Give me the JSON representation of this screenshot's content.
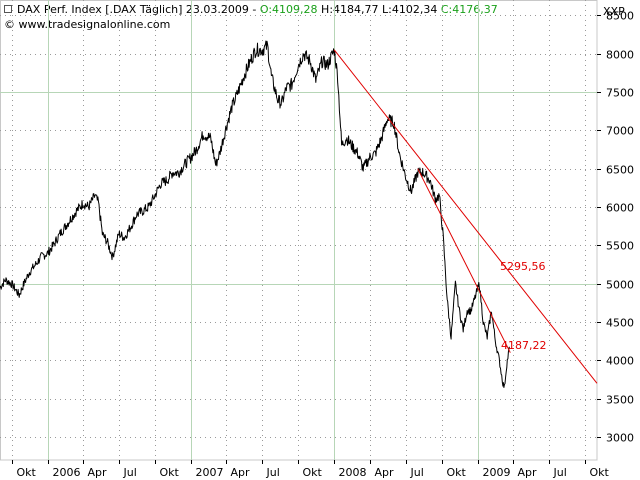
{
  "header": {
    "title": "DAX Perf. Index [.DAX  Täglich]",
    "date": "23.03.2009",
    "open": "O:4109,28",
    "high": "H:4184,77",
    "low": "L:4102,34",
    "close": "C:4176,37",
    "source": "© www.tradesignalonline.com",
    "unit": "XXP"
  },
  "chart_data": {
    "type": "line",
    "title": "DAX Perf. Index [.DAX  Täglich]",
    "xlabel": "",
    "ylabel": "",
    "ylim": [
      2700,
      8700
    ],
    "yticks": [
      3000,
      3500,
      4000,
      4500,
      5000,
      5500,
      6000,
      6500,
      7000,
      7500,
      8000,
      8500
    ],
    "ytick_labels": [
      "3000",
      "3500",
      "4000",
      "4500",
      "5000",
      "5500",
      "6000",
      "6500",
      "7000",
      "7500",
      "8000",
      "8500"
    ],
    "x_range": [
      "2005-09-01",
      "2009-11-01"
    ],
    "xticks": [
      {
        "date": "2005-10-01",
        "label": "Okt"
      },
      {
        "date": "2006-01-01",
        "label": "2006"
      },
      {
        "date": "2006-04-01",
        "label": "Apr"
      },
      {
        "date": "2006-07-01",
        "label": "Jul"
      },
      {
        "date": "2006-10-01",
        "label": "Okt"
      },
      {
        "date": "2007-01-01",
        "label": "2007"
      },
      {
        "date": "2007-04-01",
        "label": "Apr"
      },
      {
        "date": "2007-07-01",
        "label": "Jul"
      },
      {
        "date": "2007-10-01",
        "label": "Okt"
      },
      {
        "date": "2008-01-01",
        "label": "2008"
      },
      {
        "date": "2008-04-01",
        "label": "Apr"
      },
      {
        "date": "2008-07-01",
        "label": "Jul"
      },
      {
        "date": "2008-10-01",
        "label": "Okt"
      },
      {
        "date": "2009-01-01",
        "label": "2009"
      },
      {
        "date": "2009-04-01",
        "label": "Apr"
      },
      {
        "date": "2009-07-01",
        "label": "Jul"
      },
      {
        "date": "2009-10-01",
        "label": "Okt"
      }
    ],
    "major_grid_dates": [
      "2006-01-01",
      "2007-01-01",
      "2008-01-01",
      "2009-01-01"
    ],
    "major_grid_values": [
      5000,
      7500
    ],
    "grid": true,
    "series": [
      {
        "color": "#000000",
        "points": [
          [
            "2005-09-01",
            4950
          ],
          [
            "2005-09-15",
            5050
          ],
          [
            "2005-09-30",
            5000
          ],
          [
            "2005-10-10",
            4930
          ],
          [
            "2005-10-20",
            4850
          ],
          [
            "2005-11-01",
            5000
          ],
          [
            "2005-11-15",
            5150
          ],
          [
            "2005-12-01",
            5250
          ],
          [
            "2005-12-15",
            5350
          ],
          [
            "2006-01-01",
            5400
          ],
          [
            "2006-01-15",
            5500
          ],
          [
            "2006-02-01",
            5650
          ],
          [
            "2006-02-15",
            5750
          ],
          [
            "2006-03-01",
            5850
          ],
          [
            "2006-03-15",
            5950
          ],
          [
            "2006-04-01",
            6050
          ],
          [
            "2006-04-15",
            6000
          ],
          [
            "2006-05-01",
            6150
          ],
          [
            "2006-05-10",
            6050
          ],
          [
            "2006-05-20",
            5650
          ],
          [
            "2006-06-01",
            5550
          ],
          [
            "2006-06-15",
            5350
          ],
          [
            "2006-07-01",
            5650
          ],
          [
            "2006-07-15",
            5600
          ],
          [
            "2006-08-01",
            5750
          ],
          [
            "2006-08-15",
            5900
          ],
          [
            "2006-09-01",
            5950
          ],
          [
            "2006-09-15",
            6000
          ],
          [
            "2006-10-01",
            6150
          ],
          [
            "2006-10-15",
            6300
          ],
          [
            "2006-11-01",
            6350
          ],
          [
            "2006-11-15",
            6450
          ],
          [
            "2006-12-01",
            6450
          ],
          [
            "2006-12-15",
            6550
          ],
          [
            "2007-01-01",
            6650
          ],
          [
            "2007-01-15",
            6750
          ],
          [
            "2007-02-01",
            6950
          ],
          [
            "2007-02-20",
            6900
          ],
          [
            "2007-03-05",
            6550
          ],
          [
            "2007-03-15",
            6700
          ],
          [
            "2007-04-01",
            7050
          ],
          [
            "2007-04-15",
            7300
          ],
          [
            "2007-05-01",
            7500
          ],
          [
            "2007-05-15",
            7700
          ],
          [
            "2007-06-01",
            7900
          ],
          [
            "2007-06-15",
            8050
          ],
          [
            "2007-07-01",
            8050
          ],
          [
            "2007-07-15",
            8100
          ],
          [
            "2007-07-25",
            7700
          ],
          [
            "2007-08-10",
            7400
          ],
          [
            "2007-08-20",
            7350
          ],
          [
            "2007-09-01",
            7550
          ],
          [
            "2007-09-15",
            7600
          ],
          [
            "2007-10-01",
            7850
          ],
          [
            "2007-10-15",
            8000
          ],
          [
            "2007-11-01",
            7900
          ],
          [
            "2007-11-15",
            7650
          ],
          [
            "2007-12-01",
            7900
          ],
          [
            "2007-12-15",
            7850
          ],
          [
            "2008-01-01",
            8050
          ],
          [
            "2008-01-10",
            7700
          ],
          [
            "2008-01-20",
            6800
          ],
          [
            "2008-02-01",
            6900
          ],
          [
            "2008-02-15",
            6800
          ],
          [
            "2008-03-01",
            6700
          ],
          [
            "2008-03-15",
            6500
          ],
          [
            "2008-04-01",
            6650
          ],
          [
            "2008-04-15",
            6700
          ],
          [
            "2008-05-01",
            6900
          ],
          [
            "2008-05-15",
            7150
          ],
          [
            "2008-06-01",
            7100
          ],
          [
            "2008-06-15",
            6700
          ],
          [
            "2008-07-01",
            6400
          ],
          [
            "2008-07-15",
            6200
          ],
          [
            "2008-08-01",
            6450
          ],
          [
            "2008-08-15",
            6450
          ],
          [
            "2008-09-01",
            6350
          ],
          [
            "2008-09-15",
            6100
          ],
          [
            "2008-09-25",
            6150
          ],
          [
            "2008-10-05",
            5600
          ],
          [
            "2008-10-15",
            4800
          ],
          [
            "2008-10-25",
            4300
          ],
          [
            "2008-11-05",
            5000
          ],
          [
            "2008-11-15",
            4650
          ],
          [
            "2008-11-25",
            4400
          ],
          [
            "2008-12-05",
            4650
          ],
          [
            "2008-12-15",
            4650
          ],
          [
            "2009-01-05",
            5000
          ],
          [
            "2009-01-15",
            4500
          ],
          [
            "2009-01-25",
            4300
          ],
          [
            "2009-02-05",
            4650
          ],
          [
            "2009-02-15",
            4250
          ],
          [
            "2009-02-25",
            4000
          ],
          [
            "2009-03-06",
            3700
          ],
          [
            "2009-03-10",
            3650
          ],
          [
            "2009-03-16",
            3950
          ],
          [
            "2009-03-23",
            4176
          ]
        ]
      }
    ],
    "trendlines": [
      {
        "color": "#e00000",
        "points": [
          [
            "2008-01-01",
            8050
          ],
          [
            "2009-11-01",
            3700
          ]
        ],
        "label": "5295,56"
      },
      {
        "color": "#e00000",
        "points": [
          [
            "2008-08-01",
            6500
          ],
          [
            "2009-03-25",
            4100
          ]
        ],
        "label": "4187,22"
      }
    ]
  }
}
